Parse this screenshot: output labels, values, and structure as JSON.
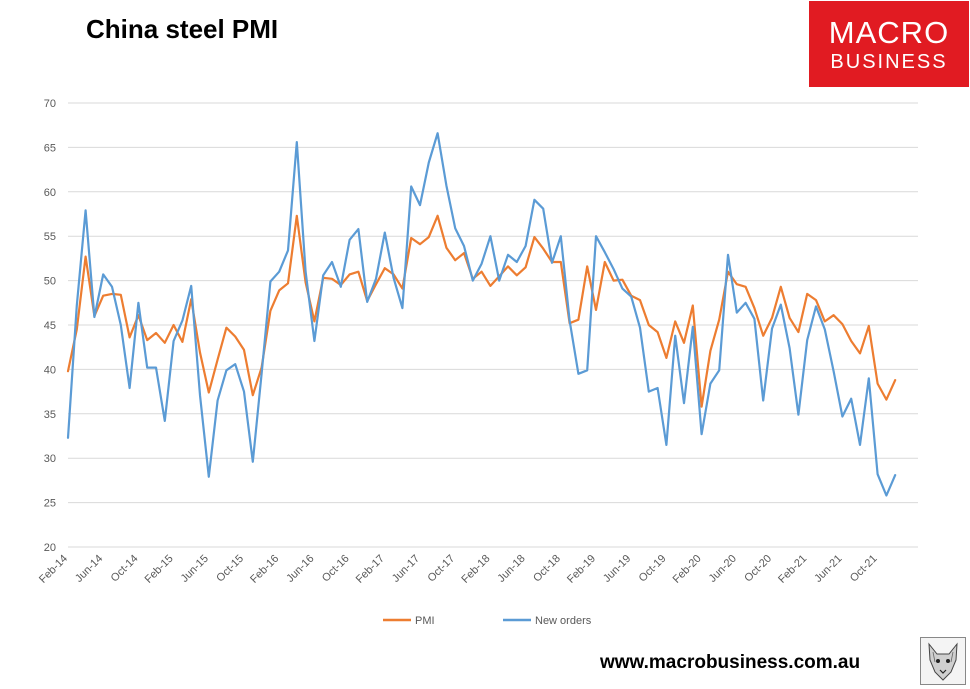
{
  "title": "China steel PMI",
  "logo": {
    "line1": "MACRO",
    "line2": "BUSINESS"
  },
  "footer": {
    "website": "www.macrobusiness.com.au"
  },
  "colors": {
    "pmi": "#ed7d31",
    "new_orders": "#5b9bd5",
    "grid": "#d9d9d9",
    "brand": "#e11b22"
  },
  "chart_data": {
    "type": "line",
    "title": "China steel PMI",
    "xlabel": "",
    "ylabel": "",
    "ylim": [
      20,
      70
    ],
    "yticks": [
      20,
      25,
      30,
      35,
      40,
      45,
      50,
      55,
      60,
      65,
      70
    ],
    "grid": true,
    "legend_position": "bottom",
    "x_start": "Feb-14",
    "x_labels": [
      "Feb-14",
      "Jun-14",
      "Oct-14",
      "Feb-15",
      "Jun-15",
      "Oct-15",
      "Feb-16",
      "Jun-16",
      "Oct-16",
      "Feb-17",
      "Jun-17",
      "Oct-17",
      "Feb-18",
      "Jun-18",
      "Oct-18",
      "Feb-19",
      "Jun-19",
      "Oct-19",
      "Feb-20",
      "Jun-20",
      "Oct-20",
      "Feb-21",
      "Jun-21",
      "Oct-21"
    ],
    "series": [
      {
        "name": "PMI",
        "color": "#ed7d31",
        "values": [
          39.8,
          44.5,
          52.7,
          46.0,
          48.3,
          48.5,
          48.4,
          43.6,
          46.1,
          43.3,
          44.1,
          43.0,
          45.0,
          43.1,
          47.9,
          41.9,
          37.4,
          41.1,
          44.7,
          43.7,
          42.2,
          37.1,
          40.2,
          46.6,
          48.9,
          49.7,
          57.3,
          49.8,
          45.4,
          50.3,
          50.2,
          49.5,
          50.7,
          51.0,
          47.7,
          49.6,
          51.4,
          50.7,
          49.1,
          54.8,
          54.1,
          54.9,
          57.3,
          53.7,
          52.3,
          53.1,
          50.2,
          51.0,
          49.4,
          50.5,
          51.6,
          50.6,
          51.5,
          54.9,
          53.6,
          52.1,
          52.1,
          45.2,
          45.6,
          51.6,
          46.7,
          52.1,
          50.0,
          50.1,
          48.3,
          47.8,
          45.0,
          44.2,
          41.3,
          45.4,
          43.0,
          47.2,
          35.8,
          42.1,
          45.6,
          51.0,
          49.6,
          49.3,
          46.9,
          43.8,
          45.8,
          49.3,
          45.8,
          44.2,
          48.5,
          47.8,
          45.4,
          46.1,
          45.1,
          43.2,
          41.8,
          44.9,
          38.4,
          36.6,
          38.8
        ]
      },
      {
        "name": "New orders",
        "color": "#5b9bd5",
        "values": [
          32.3,
          47.2,
          57.9,
          45.9,
          50.7,
          49.3,
          45.0,
          37.9,
          47.5,
          40.2,
          40.2,
          34.2,
          43.2,
          45.5,
          49.4,
          37.1,
          27.9,
          36.5,
          39.9,
          40.6,
          37.5,
          29.6,
          39.5,
          49.9,
          51.0,
          53.4,
          65.6,
          51.0,
          43.2,
          50.6,
          52.1,
          49.3,
          54.6,
          55.8,
          47.6,
          50.2,
          55.4,
          50.3,
          46.9,
          60.6,
          58.5,
          63.3,
          66.6,
          60.7,
          55.9,
          53.9,
          50.0,
          51.9,
          55.0,
          50.0,
          52.9,
          52.1,
          53.9,
          59.1,
          58.1,
          52.0,
          55.0,
          45.5,
          39.5,
          39.9,
          55.0,
          53.2,
          51.3,
          49.1,
          48.2,
          44.7,
          37.5,
          37.9,
          31.5,
          43.8,
          36.2,
          44.8,
          32.7,
          38.4,
          39.9,
          52.9,
          46.4,
          47.5,
          45.7,
          36.5,
          44.6,
          47.3,
          42.4,
          34.9,
          43.3,
          47.1,
          44.5,
          39.8,
          34.7,
          36.7,
          31.5,
          39.0,
          28.2,
          25.8,
          28.1
        ]
      }
    ]
  }
}
